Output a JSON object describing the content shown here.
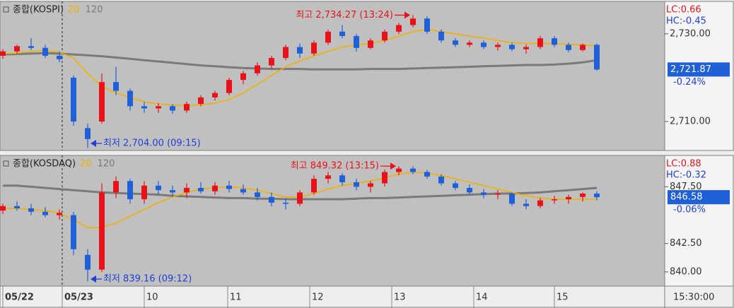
{
  "chart_data": [
    {
      "type": "candlestick",
      "title": "종합(KOSPI)",
      "lc": "LC:0.66",
      "hc": "HC:-0.45",
      "last_label": "2,721.87",
      "change_label": "-0.24%",
      "xlim": [
        -0.2,
        46.8
      ],
      "day_break": 4.2,
      "ylim": [
        2703.4,
        2737.4
      ],
      "yticks": [
        {
          "value": 2710,
          "label": "2,710.00"
        },
        {
          "value": 2730,
          "label": "2,730.00"
        }
      ],
      "grid": false,
      "up_color": "#e8131a",
      "down_color": "#1f5fd8",
      "x": [
        0,
        1,
        2,
        3,
        4,
        5,
        6,
        7,
        8,
        9,
        10,
        11,
        12,
        13,
        14,
        15,
        16,
        17,
        18,
        19,
        20,
        21,
        22,
        23,
        24,
        25,
        26,
        27,
        28,
        29,
        30,
        31,
        32,
        33,
        34,
        35,
        36,
        37,
        38,
        39,
        40,
        41,
        42
      ],
      "open": [
        2725.0,
        2726.0,
        2727.2,
        2726.8,
        2725.0,
        2720.0,
        2708.5,
        2710.0,
        2719.0,
        2717.0,
        2713.5,
        2713.0,
        2713.5,
        2712.5,
        2714.0,
        2715.5,
        2716.5,
        2719.5,
        2721.0,
        2722.8,
        2724.5,
        2727.0,
        2725.5,
        2728.0,
        2730.5,
        2729.5,
        2726.8,
        2728.5,
        2730.5,
        2732.0,
        2733.5,
        2730.5,
        2728.5,
        2727.5,
        2728.0,
        2727.0,
        2727.5,
        2726.5,
        2727.0,
        2729.0,
        2727.5,
        2726.3,
        2727.5
      ],
      "high": [
        2726.5,
        2727.5,
        2729.0,
        2727.5,
        2726.0,
        2720.5,
        2709.5,
        2721.0,
        2722.5,
        2717.5,
        2714.5,
        2714.2,
        2714.0,
        2714.5,
        2716.0,
        2717.0,
        2720.0,
        2721.5,
        2723.5,
        2725.0,
        2727.5,
        2727.8,
        2728.5,
        2731.0,
        2732.0,
        2730.0,
        2729.0,
        2731.0,
        2732.5,
        2734.27,
        2734.0,
        2731.0,
        2729.0,
        2728.5,
        2728.5,
        2728.0,
        2728.0,
        2727.5,
        2729.5,
        2729.5,
        2728.0,
        2727.8,
        2727.8
      ],
      "low": [
        2724.3,
        2725.5,
        2726.3,
        2724.5,
        2723.5,
        2709.0,
        2704.0,
        2709.5,
        2716.0,
        2712.5,
        2712.0,
        2712.0,
        2711.8,
        2712.0,
        2713.5,
        2714.8,
        2716.0,
        2718.5,
        2720.5,
        2722.0,
        2724.0,
        2724.5,
        2725.0,
        2727.5,
        2729.0,
        2726.0,
        2726.5,
        2728.0,
        2730.0,
        2731.5,
        2730.0,
        2728.0,
        2727.0,
        2727.0,
        2726.5,
        2726.2,
        2726.0,
        2725.5,
        2726.5,
        2727.0,
        2725.8,
        2726.0,
        2721.6
      ],
      "close": [
        2726.0,
        2727.2,
        2726.8,
        2725.0,
        2724.2,
        2710.0,
        2706.0,
        2719.0,
        2717.0,
        2713.5,
        2713.0,
        2713.5,
        2712.5,
        2714.0,
        2715.5,
        2716.5,
        2719.5,
        2721.0,
        2722.8,
        2724.5,
        2727.0,
        2725.5,
        2728.0,
        2730.5,
        2729.5,
        2726.8,
        2728.5,
        2730.5,
        2732.0,
        2733.5,
        2730.5,
        2728.5,
        2727.5,
        2728.0,
        2727.0,
        2727.5,
        2726.5,
        2727.0,
        2729.0,
        2727.5,
        2726.3,
        2727.5,
        2721.87
      ],
      "series": [
        {
          "name": "20",
          "color": "#f2b000",
          "width": 1.6,
          "values": [
            2725.5,
            2725.6,
            2726.0,
            2726.2,
            2725.8,
            2724.5,
            2721.0,
            2718.0,
            2716.5,
            2715.5,
            2714.5,
            2714.0,
            2713.8,
            2713.6,
            2713.8,
            2714.2,
            2715.0,
            2716.5,
            2718.5,
            2720.5,
            2722.5,
            2723.8,
            2725.0,
            2726.0,
            2727.0,
            2727.5,
            2727.8,
            2728.5,
            2729.5,
            2730.5,
            2731.0,
            2730.5,
            2730.0,
            2729.5,
            2729.0,
            2728.5,
            2728.0,
            2727.8,
            2727.8,
            2727.8,
            2727.6,
            2727.5,
            2727.3
          ]
        },
        {
          "name": "120",
          "color": "#7a7a7a",
          "width": 3,
          "values": [
            2725.3,
            2725.4,
            2725.5,
            2725.6,
            2725.5,
            2725.3,
            2725.1,
            2724.9,
            2724.6,
            2724.3,
            2724.0,
            2723.7,
            2723.4,
            2723.1,
            2722.8,
            2722.6,
            2722.4,
            2722.2,
            2722.1,
            2722.0,
            2722.0,
            2722.0,
            2721.9,
            2721.9,
            2721.9,
            2721.9,
            2722.0,
            2722.0,
            2722.0,
            2722.1,
            2722.2,
            2722.3,
            2722.4,
            2722.5,
            2722.6,
            2722.7,
            2722.8,
            2722.9,
            2722.9,
            2723.0,
            2723.2,
            2723.5,
            2724.0
          ]
        }
      ],
      "annotations": [
        {
          "text": "최고 2,734.27 (13:24)",
          "x": 29,
          "y": 2734.27,
          "side": "left",
          "color": "#e8131a"
        },
        {
          "text": "최저 2,704.00 (09:15)",
          "x": 6,
          "y": 2704.0,
          "side": "right",
          "color": "#1f3fd8"
        }
      ]
    },
    {
      "type": "candlestick",
      "title": "종합(KOSDAQ)",
      "lc": "LC:0.88",
      "hc": "HC:-0.32",
      "last_label": "846.58",
      "change_label": "-0.06%",
      "xlim": [
        -0.2,
        46.8
      ],
      "day_break": 4.2,
      "ylim": [
        838.75,
        850.26
      ],
      "yticks": [
        {
          "value": 840,
          "label": "840.00"
        },
        {
          "value": 842.5,
          "label": "842.50"
        },
        {
          "value": 847.5,
          "label": "847.50"
        }
      ],
      "grid": false,
      "up_color": "#e8131a",
      "down_color": "#1f5fd8",
      "x": [
        0,
        1,
        2,
        3,
        4,
        5,
        6,
        7,
        8,
        9,
        10,
        11,
        12,
        13,
        14,
        15,
        16,
        17,
        18,
        19,
        20,
        21,
        22,
        23,
        24,
        25,
        26,
        27,
        28,
        29,
        30,
        31,
        32,
        33,
        34,
        35,
        36,
        37,
        38,
        39,
        40,
        41,
        42
      ],
      "open": [
        845.4,
        845.8,
        845.6,
        845.3,
        845.0,
        845.0,
        841.5,
        840.2,
        847.0,
        848.0,
        846.4,
        847.6,
        847.2,
        847.0,
        847.4,
        847.1,
        847.6,
        847.3,
        847.0,
        846.6,
        846.1,
        846.0,
        847.0,
        848.2,
        848.5,
        847.9,
        847.5,
        847.8,
        848.8,
        849.1,
        848.8,
        848.4,
        847.8,
        847.4,
        847.0,
        846.8,
        846.9,
        846.0,
        845.8,
        846.3,
        846.4,
        846.6,
        846.9
      ],
      "high": [
        846.0,
        846.2,
        846.0,
        845.7,
        845.5,
        845.3,
        842.0,
        847.8,
        848.4,
        848.2,
        848.0,
        848.0,
        847.6,
        847.8,
        847.9,
        847.9,
        848.0,
        847.7,
        847.4,
        847.0,
        846.5,
        847.2,
        848.5,
        848.8,
        848.7,
        848.2,
        848.0,
        849.0,
        849.32,
        849.3,
        849.0,
        848.6,
        848.0,
        847.7,
        847.3,
        847.2,
        847.0,
        846.4,
        846.5,
        846.7,
        846.8,
        847.0,
        847.1
      ],
      "low": [
        845.1,
        845.4,
        845.0,
        844.8,
        844.6,
        841.5,
        839.16,
        840.0,
        846.5,
        846.0,
        846.0,
        846.8,
        846.6,
        846.5,
        846.9,
        846.8,
        847.0,
        846.8,
        846.3,
        845.8,
        845.5,
        845.8,
        846.8,
        847.8,
        847.6,
        847.2,
        847.0,
        847.5,
        848.5,
        848.6,
        848.2,
        847.6,
        847.2,
        846.8,
        846.5,
        846.4,
        845.8,
        845.5,
        845.6,
        846.0,
        846.0,
        846.2,
        846.3
      ],
      "close": [
        845.8,
        845.6,
        845.3,
        845.0,
        845.2,
        842.0,
        840.2,
        847.0,
        848.0,
        846.4,
        847.6,
        847.2,
        847.0,
        847.4,
        847.1,
        847.6,
        847.3,
        847.0,
        846.6,
        846.1,
        846.0,
        847.0,
        848.2,
        848.5,
        847.9,
        847.5,
        847.8,
        848.8,
        849.1,
        848.8,
        848.4,
        847.8,
        847.4,
        847.0,
        846.8,
        846.9,
        846.0,
        845.8,
        846.3,
        846.4,
        846.6,
        846.9,
        846.58
      ],
      "series": [
        {
          "name": "20",
          "color": "#f2b000",
          "width": 1.6,
          "values": [
            845.6,
            845.6,
            845.5,
            845.4,
            845.2,
            844.6,
            843.9,
            843.9,
            844.3,
            844.9,
            845.5,
            846.1,
            846.6,
            847.0,
            847.3,
            847.4,
            847.5,
            847.4,
            847.2,
            846.9,
            846.6,
            846.6,
            846.9,
            847.3,
            847.6,
            847.8,
            848.0,
            848.3,
            848.6,
            848.8,
            848.7,
            848.5,
            848.2,
            847.9,
            847.6,
            847.3,
            847.0,
            846.7,
            846.5,
            846.4,
            846.4,
            846.4,
            846.4
          ]
        },
        {
          "name": "120",
          "color": "#7a7a7a",
          "width": 3,
          "values": [
            847.6,
            847.6,
            847.5,
            847.4,
            847.3,
            847.2,
            847.1,
            847.0,
            846.95,
            846.9,
            846.85,
            846.8,
            846.7,
            846.65,
            846.6,
            846.55,
            846.5,
            846.5,
            846.45,
            846.45,
            846.4,
            846.4,
            846.4,
            846.4,
            846.4,
            846.45,
            846.5,
            846.5,
            846.55,
            846.6,
            846.65,
            846.7,
            846.75,
            846.8,
            846.85,
            846.9,
            846.9,
            846.95,
            847.0,
            847.1,
            847.2,
            847.3,
            847.4
          ]
        }
      ],
      "annotations": [
        {
          "text": "최고 849.32 (13:15)",
          "x": 28,
          "y": 849.32,
          "side": "left",
          "color": "#e8131a"
        },
        {
          "text": "최저 839.16 (09:12)",
          "x": 6,
          "y": 839.16,
          "side": "right",
          "color": "#1f3fd8"
        }
      ],
      "xticks": [
        {
          "value": 0,
          "label": "05/22"
        },
        {
          "value": 4.2,
          "label": "05/23"
        },
        {
          "value": 10,
          "label": "10"
        },
        {
          "value": 15.9,
          "label": "11"
        },
        {
          "value": 21.7,
          "label": "12"
        },
        {
          "value": 27.5,
          "label": "13"
        },
        {
          "value": 33.3,
          "label": "14"
        },
        {
          "value": 39,
          "label": "15"
        }
      ],
      "time_label": "15:30:00"
    }
  ]
}
